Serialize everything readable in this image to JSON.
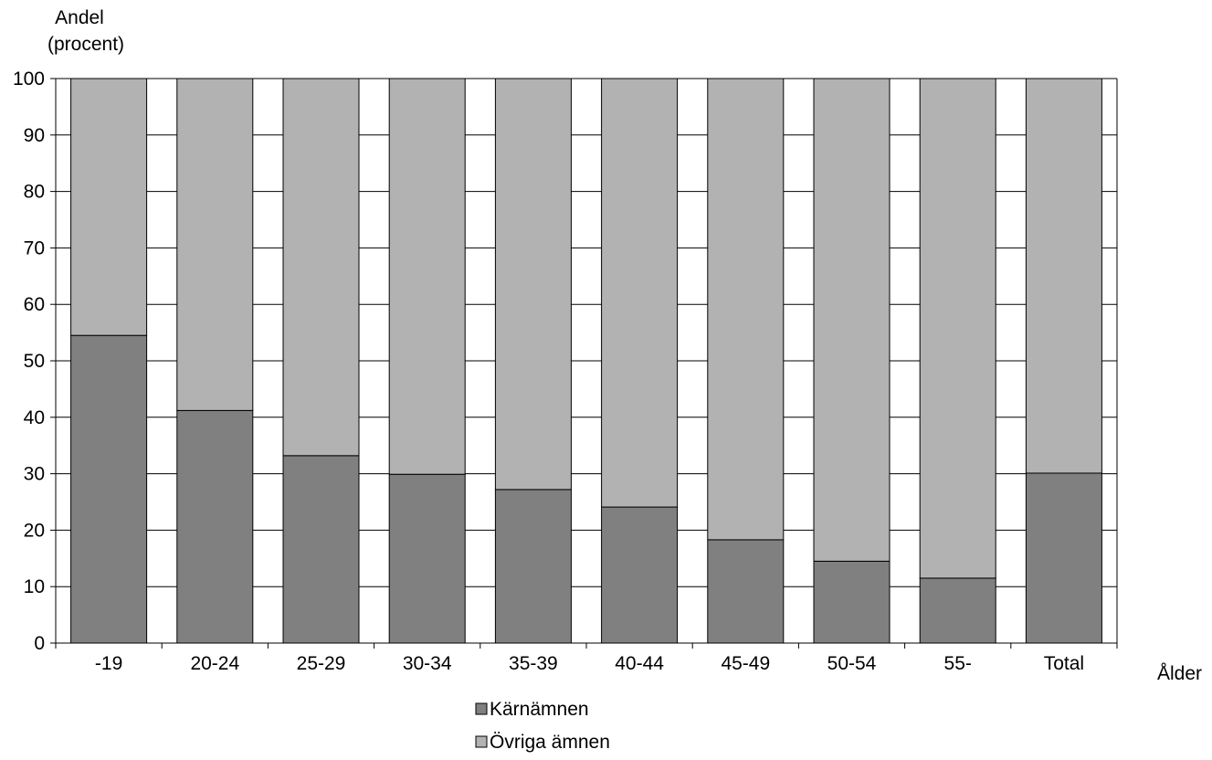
{
  "chart_data": {
    "type": "bar",
    "stacked": true,
    "ylabel_line1": "Andel",
    "ylabel_line2": "(procent)",
    "xlabel": "Ålder",
    "ylim": [
      0,
      100
    ],
    "yticks": [
      0,
      10,
      20,
      30,
      40,
      50,
      60,
      70,
      80,
      90,
      100
    ],
    "grid": true,
    "legend_position": "bottom",
    "categories": [
      "-19",
      "20-24",
      "25-29",
      "30-34",
      "35-39",
      "40-44",
      "45-49",
      "50-54",
      "55-",
      "Total"
    ],
    "series": [
      {
        "name": "Kärnämnen",
        "color": "#808080",
        "values": [
          54.5,
          41.2,
          33.2,
          29.9,
          27.2,
          24.1,
          18.3,
          14.5,
          11.5,
          30.1
        ]
      },
      {
        "name": "Övriga ämnen",
        "color": "#b2b2b2",
        "values": [
          45.5,
          58.8,
          66.8,
          70.1,
          72.8,
          75.9,
          81.7,
          85.5,
          88.5,
          69.9
        ]
      }
    ]
  }
}
